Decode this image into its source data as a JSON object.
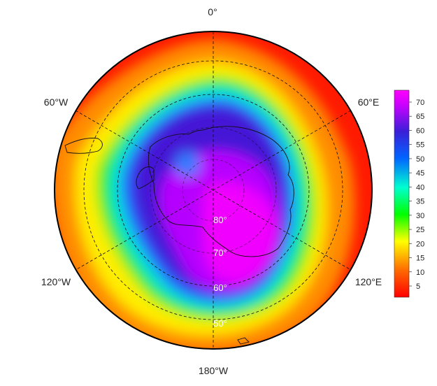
{
  "map": {
    "projection": "south-polar-stereographic",
    "colormap": "rainbow (red low → magenta high)",
    "field_range": [
      0,
      75
    ],
    "longitude_labels": {
      "top": "0°",
      "upper_right": "60°E",
      "lower_right": "120°E",
      "bottom": "180°W",
      "lower_left": "120°W",
      "upper_left": "60°W"
    },
    "latitude_labels": [
      "80°",
      "70°",
      "60°",
      "50°"
    ]
  },
  "colorbar": {
    "ticks": [
      "70",
      "65",
      "60",
      "55",
      "50",
      "45",
      "40",
      "35",
      "30",
      "25",
      "20",
      "15",
      "10",
      "5"
    ],
    "colors": {
      "min": "#ff0000",
      "c10": "#ff6a00",
      "c20": "#ffff00",
      "c30": "#00ff00",
      "c40": "#00ffd0",
      "c50": "#0066ff",
      "c60": "#3a1fd8",
      "c70": "#cc00ff",
      "max": "#ff00ff"
    }
  }
}
